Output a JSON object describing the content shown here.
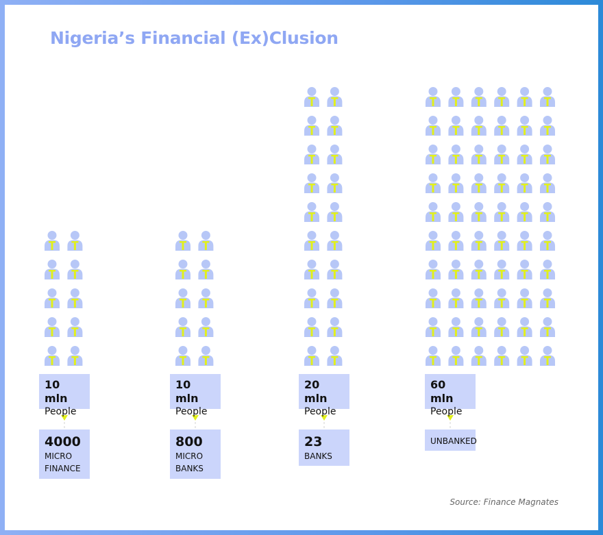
{
  "title": "Nigeria’s Financial (Ex)Clusion",
  "source": "Source: Finance Magnates",
  "colors": {
    "icon": "#b7c7f7",
    "accent": "#e2f01c",
    "box": "#cbd5fb",
    "title": "#8fa7f3"
  },
  "icon_name": "person-icon",
  "chart_data": {
    "type": "pictogram",
    "unit_per_icon_mln": 1,
    "groups": [
      {
        "value_label": "10 mln",
        "sub_label": "People",
        "people_mln": 10,
        "count": "4000",
        "kind": "MICRO FINANCE",
        "kind_lines": [
          "MICRO",
          "FINANCE"
        ]
      },
      {
        "value_label": "10 mln",
        "sub_label": "People",
        "people_mln": 10,
        "count": "800",
        "kind": "MICRO BANKS",
        "kind_lines": [
          "MICRO",
          "BANKS"
        ]
      },
      {
        "value_label": "20 mln",
        "sub_label": "People",
        "people_mln": 20,
        "count": "23",
        "kind": "BANKS",
        "kind_lines": [
          "BANKS"
        ]
      },
      {
        "value_label": "60 mln",
        "sub_label": "People",
        "people_mln": 60,
        "count": "",
        "kind": "UNBANKED",
        "kind_lines": [
          "UNBANKED"
        ]
      }
    ]
  }
}
